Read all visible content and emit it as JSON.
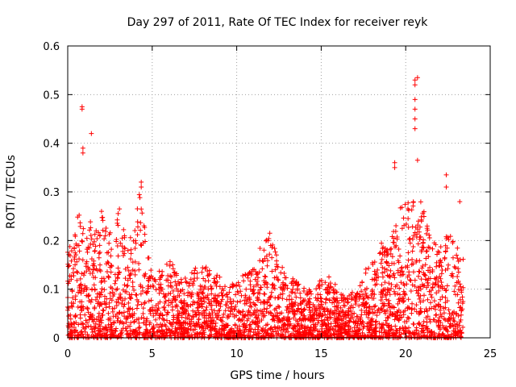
{
  "chart_data": {
    "type": "scatter",
    "title": "Day 297 of 2011, Rate Of TEC Index for receiver reyk",
    "xlabel": "GPS time / hours",
    "ylabel": "ROTI / TECUs",
    "xlim": [
      0,
      25
    ],
    "ylim": [
      0,
      0.6
    ],
    "xticks": [
      "0",
      "5",
      "10",
      "15",
      "20",
      "25"
    ],
    "yticks": [
      "0",
      "0.1",
      "0.2",
      "0.3",
      "0.4",
      "0.5",
      "0.6"
    ],
    "grid": true,
    "marker": "plus",
    "color": "#ff0000",
    "envelope": {
      "x": [
        0.0,
        0.3,
        0.6,
        0.9,
        1.2,
        1.5,
        1.8,
        2.1,
        2.4,
        2.7,
        3.0,
        3.3,
        3.6,
        3.9,
        4.2,
        4.5,
        5.0,
        5.5,
        6.0,
        6.5,
        7.0,
        7.5,
        8.0,
        8.5,
        9.0,
        9.5,
        10.0,
        10.5,
        11.0,
        11.5,
        12.0,
        12.5,
        13.0,
        13.5,
        14.0,
        14.5,
        15.0,
        15.5,
        16.0,
        16.5,
        17.0,
        17.5,
        18.0,
        18.3,
        18.6,
        18.9,
        19.2,
        19.5,
        19.8,
        20.1,
        20.4,
        20.7,
        21.0,
        21.3,
        21.6,
        21.9,
        22.2,
        22.5,
        22.8,
        23.1,
        23.4
      ],
      "y": [
        0.2,
        0.19,
        0.25,
        0.27,
        0.22,
        0.25,
        0.21,
        0.28,
        0.22,
        0.2,
        0.27,
        0.22,
        0.2,
        0.22,
        0.3,
        0.25,
        0.12,
        0.14,
        0.16,
        0.13,
        0.12,
        0.14,
        0.15,
        0.14,
        0.13,
        0.1,
        0.12,
        0.13,
        0.14,
        0.2,
        0.22,
        0.15,
        0.13,
        0.12,
        0.1,
        0.1,
        0.12,
        0.13,
        0.1,
        0.08,
        0.1,
        0.13,
        0.16,
        0.18,
        0.2,
        0.18,
        0.22,
        0.25,
        0.27,
        0.28,
        0.3,
        0.27,
        0.28,
        0.22,
        0.2,
        0.18,
        0.2,
        0.22,
        0.2,
        0.18,
        0.16
      ]
    },
    "highlights": [
      {
        "x": 0.85,
        "y": [
          0.47,
          0.475
        ]
      },
      {
        "x": 0.9,
        "y": [
          0.38,
          0.39
        ]
      },
      {
        "x": 1.4,
        "y": [
          0.42
        ]
      },
      {
        "x": 4.35,
        "y": [
          0.32,
          0.31
        ]
      },
      {
        "x": 19.35,
        "y": [
          0.36,
          0.35
        ]
      },
      {
        "x": 20.55,
        "y": [
          0.53,
          0.52,
          0.49,
          0.47,
          0.45,
          0.43
        ]
      },
      {
        "x": 20.7,
        "y": [
          0.535,
          0.365
        ]
      },
      {
        "x": 22.4,
        "y": [
          0.335,
          0.31
        ]
      },
      {
        "x": 23.2,
        "y": [
          0.28
        ]
      }
    ]
  }
}
